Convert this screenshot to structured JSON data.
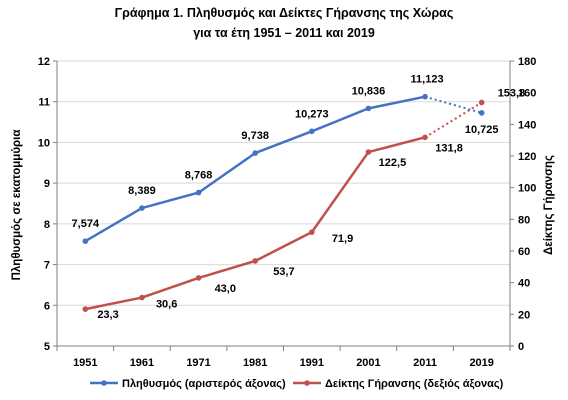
{
  "chart_data": {
    "type": "line",
    "title_line1": "Γράφημα 1. Πληθυσμός και Δείκτες Γήρανσης της Χώρας",
    "title_line2": "για τα έτη 1951 – 2011 και 2019",
    "categories": [
      "1951",
      "1961",
      "1971",
      "1981",
      "1991",
      "2001",
      "2011",
      "2019"
    ],
    "y_left": {
      "label": "Πληθυσμός σε εκατομμύρια",
      "min": 5,
      "max": 12,
      "step": 1,
      "ticks": [
        "5",
        "6",
        "7",
        "8",
        "9",
        "10",
        "11",
        "12"
      ]
    },
    "y_right": {
      "label": "Δείκτης Γήρανσης",
      "min": 0,
      "max": 180,
      "step": 20,
      "ticks": [
        "0",
        "20",
        "40",
        "60",
        "80",
        "100",
        "120",
        "140",
        "160",
        "180"
      ]
    },
    "grid": "horizontal",
    "legend_position": "bottom",
    "series": [
      {
        "name": "Πληθυσμός (αριστερός άξονας)",
        "axis": "left",
        "color": "#4472C4",
        "values": [
          7.574,
          8.389,
          8.768,
          9.738,
          10.273,
          10.836,
          11.123,
          10.725
        ],
        "labels": [
          "7,574",
          "8,389",
          "8,768",
          "9,738",
          "10,273",
          "10,836",
          "11,123",
          "10,725"
        ],
        "dotted_from_index": 6
      },
      {
        "name": "Δείκτης Γήρανσης (δεξιός άξονας)",
        "axis": "right",
        "color": "#C0504D",
        "values": [
          23.3,
          30.6,
          43.0,
          53.7,
          71.9,
          122.5,
          131.8,
          153.8
        ],
        "labels": [
          "23,3",
          "30,6",
          "43,0",
          "53,7",
          "71,9",
          "122,5",
          "131,8",
          "153,8"
        ],
        "dotted_from_index": 6
      }
    ]
  }
}
